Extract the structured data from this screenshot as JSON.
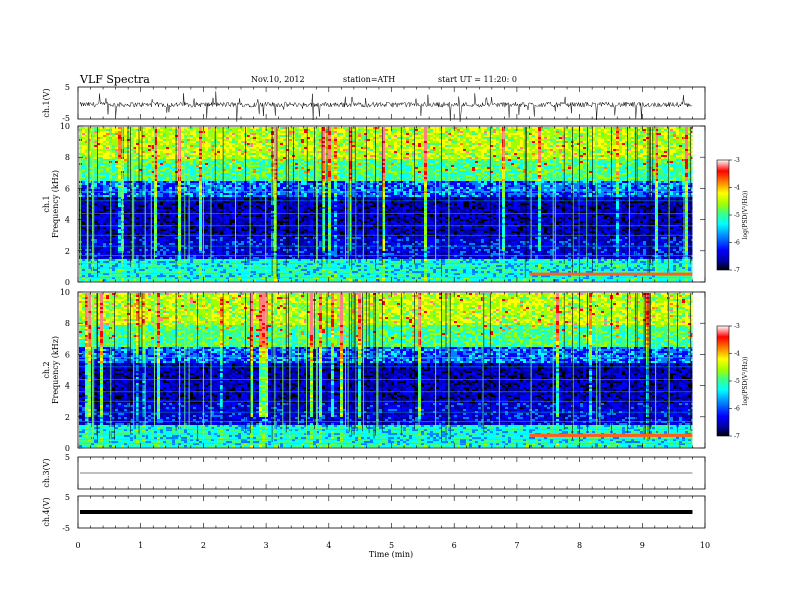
{
  "header": {
    "title": "VLF Spectra",
    "date": "Nov.10, 2012",
    "station": "station=ATH",
    "start": "start UT = 11:20: 0"
  },
  "colors": {
    "colormap": [
      "#000000",
      "#0000a0",
      "#0000ff",
      "#0080ff",
      "#00ffff",
      "#40ff80",
      "#a0ff00",
      "#ffff00",
      "#ff8000",
      "#ff0000",
      "#ff8080",
      "#ffffff"
    ],
    "trace": "#000000"
  },
  "chart_data": [
    {
      "type": "line",
      "panel": "ch1-waveform",
      "ylabel": "ch.1(V)",
      "ylim": [
        -5,
        5
      ],
      "yticks": [
        "5",
        "-5"
      ],
      "description_level": "noisy trace around -0.5 V with frequent negative spikes",
      "series": [
        {
          "values_baseline": -0.5
        }
      ]
    },
    {
      "type": "heatmap",
      "panel": "ch1-spectrogram",
      "ylabel_channel": "ch.1",
      "ylabel": "Frequency (kHz)",
      "ylim": [
        0,
        10
      ],
      "yticks": [
        "0",
        "2",
        "4",
        "6",
        "8",
        "10"
      ],
      "xlim": [
        0,
        10
      ],
      "colorbar": {
        "label": "log(PSD(V²/Hz))",
        "range": [
          -7,
          -3
        ],
        "ticks": [
          "-3",
          "-4",
          "-5",
          "-6",
          "-7"
        ]
      },
      "data_end_min": 9.8,
      "band_change_min": 7.2
    },
    {
      "type": "heatmap",
      "panel": "ch2-spectrogram",
      "ylabel_channel": "ch.2",
      "ylabel": "Frequency (kHz)",
      "ylim": [
        0,
        10
      ],
      "yticks": [
        "0",
        "2",
        "4",
        "6",
        "8",
        "10"
      ],
      "xlim": [
        0,
        10
      ],
      "colorbar": {
        "label": "log(PSD(V²/Hz))",
        "range": [
          -7,
          -3
        ],
        "ticks": [
          "-3",
          "-4",
          "-5",
          "-6",
          "-7"
        ]
      },
      "data_end_min": 9.8,
      "band_change_min": 7.2
    },
    {
      "type": "line",
      "panel": "ch3-waveform",
      "ylabel": "ch.3(V)",
      "ylim": [
        -5,
        5
      ],
      "yticks": [
        "5"
      ],
      "series": [
        {
          "values_baseline": 0
        }
      ]
    },
    {
      "type": "line",
      "panel": "ch4-waveform",
      "ylabel": "ch.4(V)",
      "ylim": [
        -5,
        5
      ],
      "yticks": [
        "5",
        "-5"
      ],
      "series": [
        {
          "values_baseline": 0
        }
      ]
    }
  ],
  "xaxis": {
    "label": "Time (min)",
    "ticks": [
      "0",
      "1",
      "2",
      "3",
      "4",
      "5",
      "6",
      "7",
      "8",
      "9",
      "10"
    ],
    "range": [
      0,
      10
    ]
  }
}
